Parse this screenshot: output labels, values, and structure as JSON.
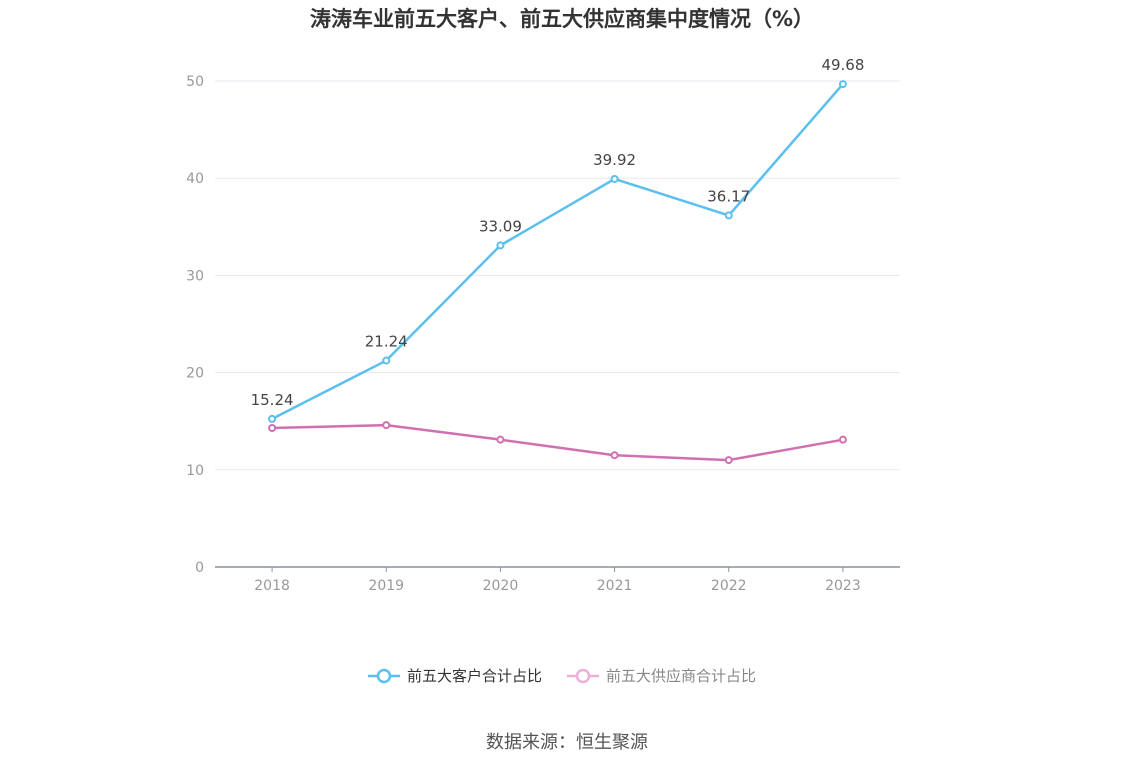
{
  "chart_data": {
    "type": "line",
    "title": "涛涛车业前五大客户、前五大供应商集中度情况（%）",
    "categories": [
      "2018",
      "2019",
      "2020",
      "2021",
      "2022",
      "2023"
    ],
    "series": [
      {
        "name": "前五大客户合计占比",
        "values": [
          15.24,
          21.24,
          33.09,
          39.92,
          36.17,
          49.68
        ],
        "color": "#5bbfef",
        "show_labels": true
      },
      {
        "name": "前五大供应商合计占比",
        "values": [
          14.3,
          14.6,
          13.1,
          11.5,
          11.0,
          13.1
        ],
        "color": "#d070b0",
        "legend_color": "#eeb0d8",
        "show_labels": false
      }
    ],
    "ylim": [
      0,
      50
    ],
    "yticks": [
      "0",
      "10",
      "20",
      "30",
      "40",
      "50"
    ],
    "grid": true,
    "legend_position": "bottom-center"
  },
  "source_text": "数据来源：恒生聚源"
}
